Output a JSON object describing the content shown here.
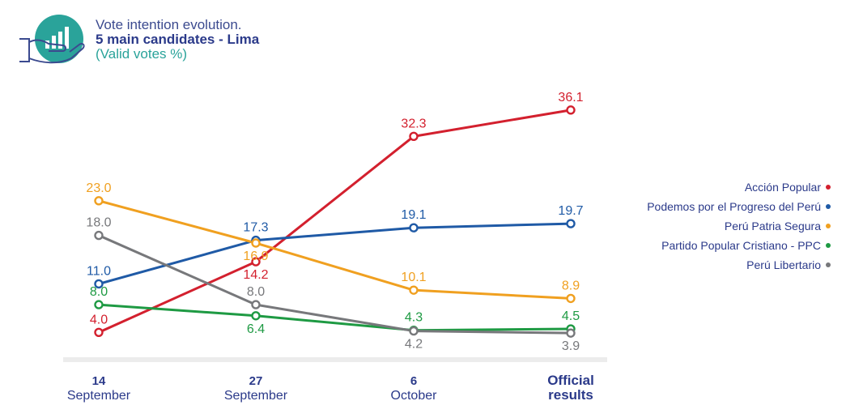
{
  "header": {
    "title_line1": "Vote intention evolution.",
    "title_line2": "5 main candidates - Lima",
    "title_line3": "(Valid votes %)",
    "icon": "hand-holding-bar-chart-icon"
  },
  "chart_data": {
    "type": "line",
    "ylim": [
      0,
      40
    ],
    "categories": [
      {
        "top": "14",
        "bottom": "September",
        "bold": false
      },
      {
        "top": "27",
        "bottom": "September",
        "bold": false
      },
      {
        "top": "6",
        "bottom": "October",
        "bold": false
      },
      {
        "top": "Official",
        "bottom": "results",
        "bold": true
      }
    ],
    "series": [
      {
        "name": "Acción Popular",
        "color": "#d3202e",
        "values": [
          4.0,
          14.2,
          32.3,
          36.1
        ],
        "labels": [
          "4.0",
          "14.2",
          "32.3",
          "36.1"
        ],
        "label_pos": [
          "above",
          "below",
          "above",
          "above"
        ]
      },
      {
        "name": "Podemos por el Progreso del Perú",
        "color": "#1f5aa6",
        "values": [
          11.0,
          17.3,
          19.1,
          19.7
        ],
        "labels": [
          "11.0",
          "17.3",
          "19.1",
          "19.7"
        ],
        "label_pos": [
          "above",
          "above",
          "above",
          "above"
        ]
      },
      {
        "name": "Perú Patria Segura",
        "color": "#f0a020",
        "values": [
          23.0,
          16.9,
          10.1,
          8.9
        ],
        "labels": [
          "23.0",
          "16.9",
          "10.1",
          "8.9"
        ],
        "label_pos": [
          "above",
          "below",
          "above",
          "above"
        ]
      },
      {
        "name": "Partido Popular Cristiano - PPC",
        "color": "#1e9a43",
        "values": [
          8.0,
          6.4,
          4.3,
          4.5
        ],
        "labels": [
          "8.0",
          "6.4",
          "4.3",
          "4.5"
        ],
        "label_pos": [
          "above",
          "below",
          "above",
          "above"
        ]
      },
      {
        "name": "Perú Libertario",
        "color": "#77787b",
        "values": [
          18.0,
          8.0,
          4.2,
          3.9
        ],
        "labels": [
          "18.0",
          "8.0",
          "4.2",
          "3.9"
        ],
        "label_pos": [
          "above",
          "above",
          "below",
          "below"
        ]
      }
    ],
    "legend_position": "right",
    "grid": false
  }
}
